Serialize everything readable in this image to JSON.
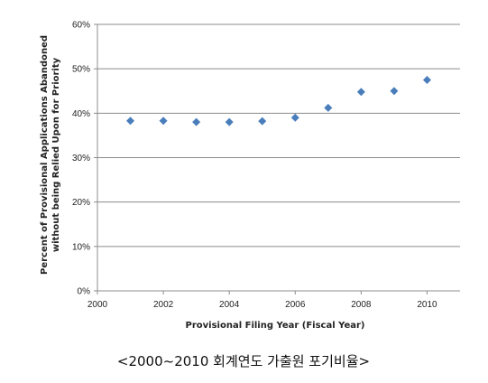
{
  "chart_data": {
    "type": "scatter",
    "title": "",
    "xlabel": "Provisional Filing Year (Fiscal Year)",
    "ylabel_lines": [
      "Percent of Provisional Applications Abandoned",
      "without being Relied Upon for Priority"
    ],
    "xlim": [
      2000,
      2011
    ],
    "ylim": [
      0,
      60
    ],
    "x_ticks": [
      2000,
      2002,
      2004,
      2006,
      2008,
      2010
    ],
    "y_ticks": [
      0,
      10,
      20,
      30,
      40,
      50,
      60
    ],
    "y_tick_format": "percent",
    "grid": "horizontal",
    "marker": "diamond",
    "color": "#4a7ebb",
    "series": [
      {
        "x": [
          2001,
          2002,
          2003,
          2004,
          2005,
          2006,
          2007,
          2008,
          2009,
          2010
        ],
        "y": [
          38.3,
          38.3,
          38.0,
          38.0,
          38.2,
          39.0,
          41.2,
          44.8,
          45.0,
          47.5
        ]
      }
    ]
  },
  "caption": "<2000~2010 회계연도 가출원 포기비율>"
}
